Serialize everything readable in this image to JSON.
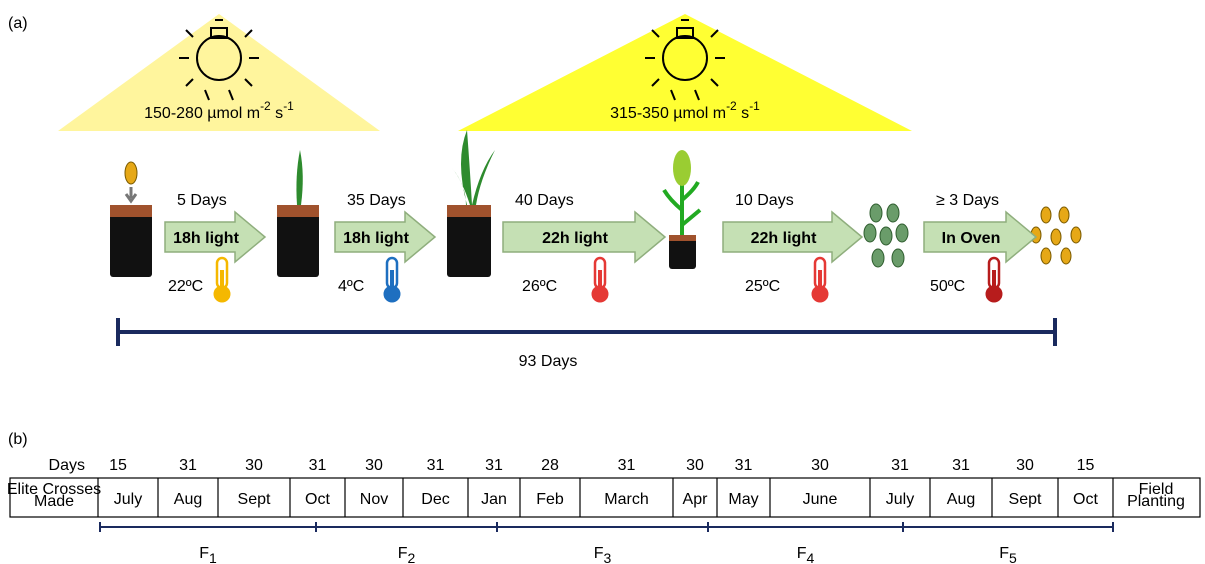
{
  "panel_a": {
    "label": "(a)",
    "lights": [
      {
        "text": "150-280 µmol m",
        "exp1": "-2",
        "mid": " s",
        "exp2": "-1"
      },
      {
        "text": "315-350 µmol m",
        "exp1": "-2",
        "mid": " s",
        "exp2": "-1"
      }
    ],
    "stages": [
      {
        "duration": "5 Days",
        "action": "18h light",
        "temp": "22ºC"
      },
      {
        "duration": "35 Days",
        "action": "18h light",
        "temp": "4ºC"
      },
      {
        "duration": "40 Days",
        "action": "22h light",
        "temp": "26ºC"
      },
      {
        "duration": "10 Days",
        "action": "22h light",
        "temp": "25ºC"
      },
      {
        "duration": "≥ 3 Days",
        "action": "In Oven",
        "temp": "50ºC"
      }
    ],
    "total": "93 Days"
  },
  "panel_b": {
    "label": "(b)",
    "days_label": "Days",
    "start": "Elite Crosses Made",
    "end": "Field Planting",
    "months": [
      "July",
      "Aug",
      "Sept",
      "Oct",
      "Nov",
      "Dec",
      "Jan",
      "Feb",
      "March",
      "Apr",
      "May",
      "June",
      "July",
      "Aug",
      "Sept",
      "Oct"
    ],
    "days": [
      15,
      31,
      30,
      31,
      30,
      31,
      31,
      28,
      31,
      30,
      31,
      30,
      31,
      31,
      30,
      15
    ],
    "generations": [
      {
        "name": "F",
        "sub": "1"
      },
      {
        "name": "F",
        "sub": "2"
      },
      {
        "name": "F",
        "sub": "3"
      },
      {
        "name": "F",
        "sub": "4"
      },
      {
        "name": "F",
        "sub": "5"
      }
    ]
  }
}
